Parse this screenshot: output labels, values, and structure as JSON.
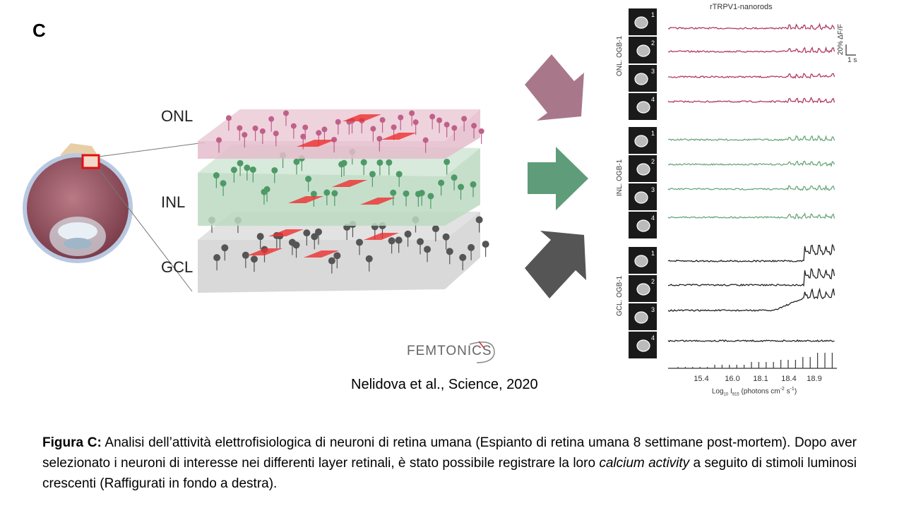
{
  "panel_label": "C",
  "layers": [
    "ONL",
    "INL",
    "GCL"
  ],
  "logo_text": "FEMTONICS",
  "citation": "Nelidova et al., Science, 2020",
  "figure": {
    "title": "rTRPV1-nanorods",
    "side_labels": [
      "ONL. OGB-1",
      "INL. OGB-1",
      "GCL. OGB-1"
    ],
    "cell_numbers": [
      "1",
      "2",
      "3",
      "4"
    ],
    "scale_y": "20%",
    "scale_y_unit": "ΔF/F",
    "scale_x": "1 s",
    "x_ticks": [
      "15.4",
      "16.0",
      "18.1",
      "18.4",
      "18.9"
    ],
    "x_label_pre": "Log",
    "x_label_sub": "10",
    "x_label_mid": " I",
    "x_label_sub2": "915",
    "x_label_post": " (photons cm",
    "x_label_sup": "-2",
    "x_label_post2": " s",
    "x_label_sup2": "-1",
    "x_label_end": ")",
    "colors": {
      "ONL": "#b03a66",
      "INL": "#6aa87a",
      "GCL": "#222222"
    }
  },
  "arrows": {
    "ONL": "#a8788a",
    "INL": "#5f9c79",
    "GCL": "#555555"
  },
  "caption": {
    "bold": "Figura C:",
    "text1": " Analisi dell’attività elettrofisiologica di neuroni di retina umana (Espianto di retina umana 8 settimane post-mortem). Dopo aver selezionato i neuroni di interesse nei differenti layer retinali, è stato possibile registrare la loro ",
    "italic": "calcium activity",
    "text2": " a seguito di stimoli luminosi crescenti (Raffigurati in fondo a destra)."
  }
}
